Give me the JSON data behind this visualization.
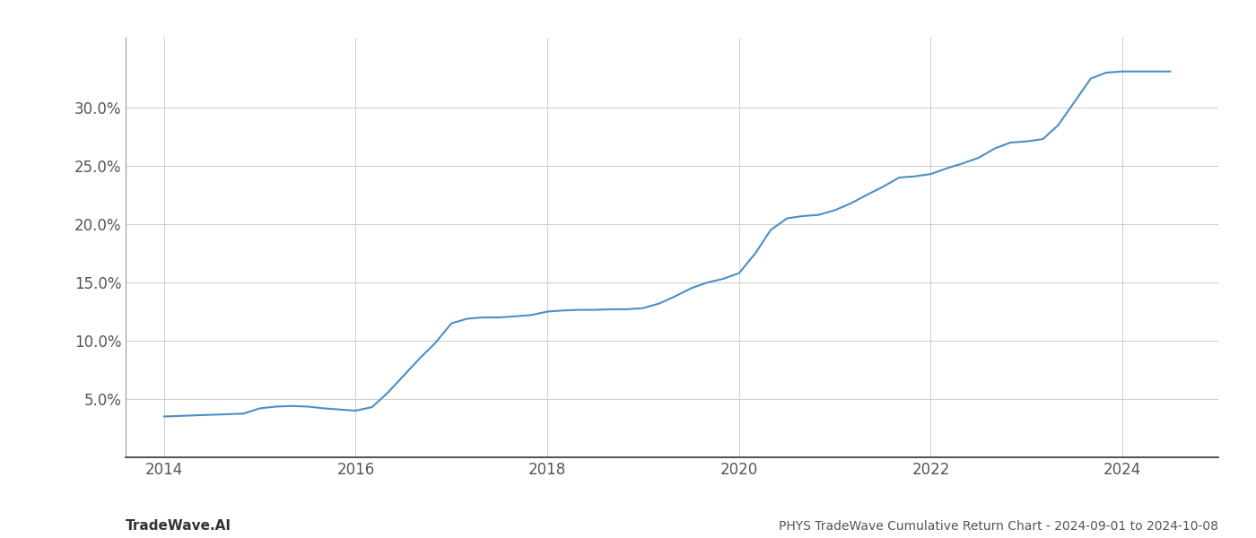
{
  "title": "PHYS TradeWave Cumulative Return Chart - 2024-09-01 to 2024-10-08",
  "title_left": "TradeWave.AI",
  "line_color": "#4a90c4",
  "background_color": "#ffffff",
  "grid_color": "#cccccc",
  "x_values": [
    2014.0,
    2014.17,
    2014.33,
    2014.5,
    2014.67,
    2014.83,
    2015.0,
    2015.17,
    2015.33,
    2015.5,
    2015.67,
    2015.83,
    2016.0,
    2016.17,
    2016.33,
    2016.5,
    2016.67,
    2016.83,
    2017.0,
    2017.17,
    2017.33,
    2017.5,
    2017.67,
    2017.83,
    2018.0,
    2018.17,
    2018.33,
    2018.5,
    2018.67,
    2018.83,
    2019.0,
    2019.17,
    2019.33,
    2019.5,
    2019.67,
    2019.83,
    2020.0,
    2020.17,
    2020.33,
    2020.5,
    2020.67,
    2020.83,
    2021.0,
    2021.17,
    2021.33,
    2021.5,
    2021.67,
    2021.83,
    2022.0,
    2022.17,
    2022.33,
    2022.5,
    2022.67,
    2022.83,
    2023.0,
    2023.17,
    2023.33,
    2023.5,
    2023.67,
    2023.83,
    2024.0,
    2024.17,
    2024.5
  ],
  "y_values": [
    3.5,
    3.55,
    3.6,
    3.65,
    3.7,
    3.75,
    4.2,
    4.35,
    4.4,
    4.35,
    4.2,
    4.1,
    4.0,
    4.3,
    5.5,
    7.0,
    8.5,
    9.8,
    11.5,
    11.9,
    12.0,
    12.0,
    12.1,
    12.2,
    12.5,
    12.6,
    12.65,
    12.65,
    12.7,
    12.7,
    12.8,
    13.2,
    13.8,
    14.5,
    15.0,
    15.3,
    15.8,
    17.5,
    19.5,
    20.5,
    20.7,
    20.8,
    21.2,
    21.8,
    22.5,
    23.2,
    24.0,
    24.1,
    24.3,
    24.8,
    25.2,
    25.7,
    26.5,
    27.0,
    27.1,
    27.3,
    28.5,
    30.5,
    32.5,
    33.0,
    33.1,
    33.1,
    33.1
  ],
  "xlim": [
    2013.6,
    2025.0
  ],
  "ylim": [
    0,
    36
  ],
  "yticks": [
    5.0,
    10.0,
    15.0,
    20.0,
    25.0,
    30.0
  ],
  "xticks": [
    2014,
    2016,
    2018,
    2020,
    2022,
    2024
  ],
  "line_width": 1.5,
  "figsize": [
    14,
    6
  ],
  "dpi": 100
}
